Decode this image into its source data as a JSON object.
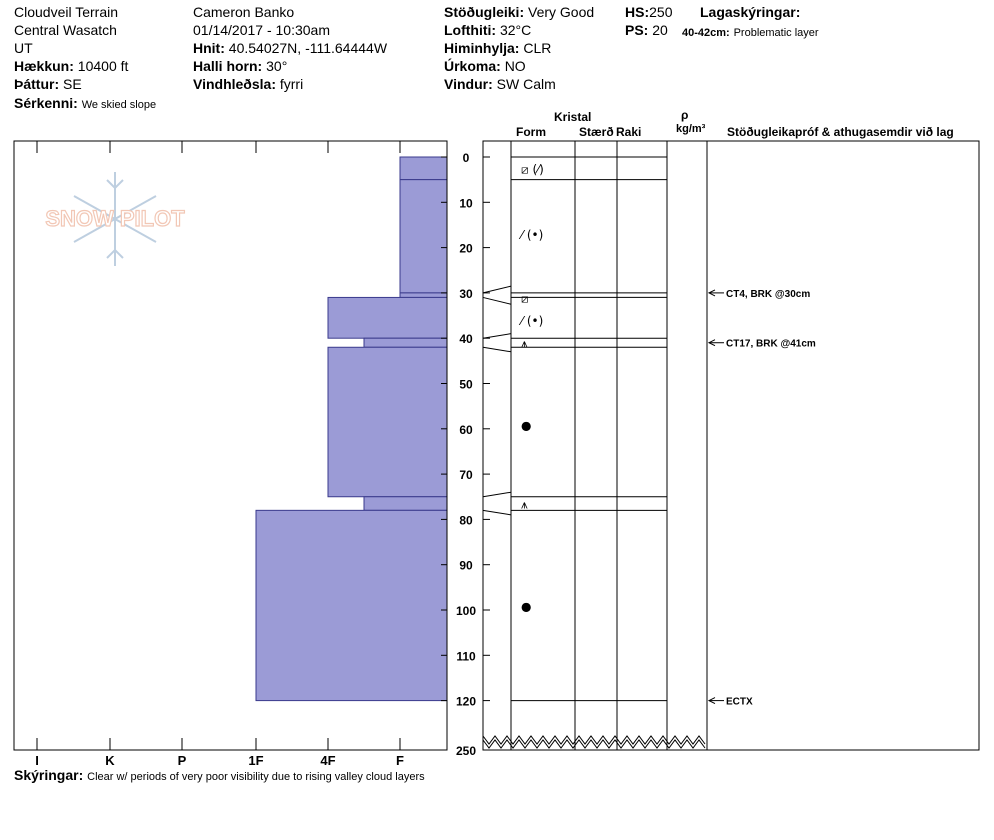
{
  "header": {
    "col1": [
      "Cloudveil Terrain",
      "Central Wasatch",
      "UT"
    ],
    "elevation": {
      "label": "Hækkun:",
      "value": "10400 ft"
    },
    "aspect": {
      "label": "Þáttur:",
      "value": "SE"
    },
    "features": {
      "label": "Sérkenni:",
      "value": "We skied slope"
    },
    "observer": "Cameron  Banko",
    "datetime": "01/14/2017 - 10:30am",
    "coords": {
      "label": "Hnit:",
      "value": "40.54027N, -111.64444W"
    },
    "slope": {
      "label": "Halli horn:",
      "value": "30°"
    },
    "wind_loading": {
      "label": "Vindhleðsla:",
      "value": "fyrri"
    },
    "stability": {
      "label": "Stöðugleiki:",
      "value": "Very Good"
    },
    "air_temp": {
      "label": "Lofthiti:",
      "value": "32°C"
    },
    "sky": {
      "label": "Himinhylja:",
      "value": "CLR"
    },
    "precip": {
      "label": "Úrkoma:",
      "value": "NO"
    },
    "wind": {
      "label": "Vindur:",
      "value": "SW Calm"
    },
    "hs": {
      "label": "HS:",
      "value": "250"
    },
    "ps": {
      "label": "PS:",
      "value": "20"
    },
    "legend_title": "Lagaskýringar:",
    "legend_range": "40-42cm:",
    "legend_text": "Problematic layer"
  },
  "columns": {
    "crystal": "Kristal",
    "form": "Form",
    "size": "Stærð",
    "moisture": "Raki",
    "rho": "ρ",
    "density_unit": "kg/m³",
    "comments": "Stöðugleikapróf & athugasemdir við lag"
  },
  "logo_text": "SNOW PILOT",
  "footer": {
    "label": "Skýringar:",
    "value": "Clear w/ periods of very poor visibility due to rising valley cloud layers"
  },
  "colors": {
    "layer_fill": "#9b9bd6",
    "layer_stroke": "#3a3a8c",
    "grid": "#000000"
  },
  "chart_data": {
    "type": "bar",
    "orientation": "horizontal",
    "depth_axis": {
      "ticks": [
        0,
        10,
        20,
        30,
        40,
        50,
        60,
        70,
        80,
        90,
        100,
        110,
        120
      ],
      "bottom_label": "250"
    },
    "hardness_axis": {
      "ticks": [
        "I",
        "K",
        "P",
        "1F",
        "4F",
        "F"
      ]
    },
    "layers": [
      {
        "top": 0,
        "bottom": 5,
        "hardness": "F"
      },
      {
        "top": 5,
        "bottom": 30,
        "hardness": "F"
      },
      {
        "top": 30,
        "bottom": 31,
        "hardness": "F"
      },
      {
        "top": 31,
        "bottom": 40,
        "hardness": "4F"
      },
      {
        "top": 40,
        "bottom": 42,
        "hardness": "4F-F"
      },
      {
        "top": 42,
        "bottom": 75,
        "hardness": "4F"
      },
      {
        "top": 75,
        "bottom": 78,
        "hardness": "4F-F"
      },
      {
        "top": 78,
        "bottom": 120,
        "hardness": "1F"
      }
    ],
    "grain_forms": [
      {
        "depth": 2.5,
        "symbol": "⧄ (⁄)"
      },
      {
        "depth": 17,
        "symbol": "⁄ (•)"
      },
      {
        "depth": 31,
        "symbol": "⧄"
      },
      {
        "depth": 36,
        "symbol": "⁄ (•)"
      },
      {
        "depth": 41,
        "symbol": "⩚"
      },
      {
        "depth": 59,
        "symbol": "●"
      },
      {
        "depth": 76.5,
        "symbol": "⩚"
      },
      {
        "depth": 99,
        "symbol": "●"
      }
    ],
    "tests": [
      {
        "depth": 30,
        "text": "CT4, BRK @30cm"
      },
      {
        "depth": 41,
        "text": "CT17, BRK @41cm"
      },
      {
        "depth": 120,
        "text": "ECTX"
      }
    ]
  }
}
